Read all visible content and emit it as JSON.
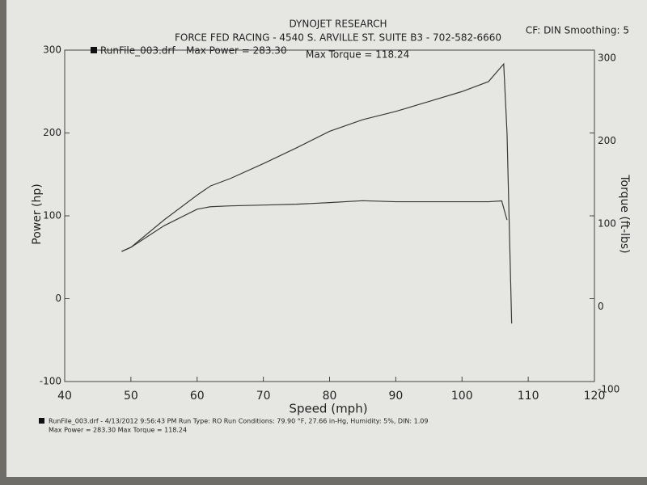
{
  "chart_data": {
    "type": "line",
    "title": "DYNOJET RESEARCH",
    "subtitle": "FORCE FED RACING - 4540 S. ARVILLE ST. SUITE B3 - 702-582-6660",
    "settings_label": "CF: DIN  Smoothing: 5",
    "x_label": "Speed (mph)",
    "y_label": "Power (hp)",
    "y2_label": "Torque (ft-lbs)",
    "annotations": [
      "Max Power = 283.30",
      "Max Torque = 118.24"
    ],
    "footer": [
      "RunFile_003.drf - 4/13/2012 9:56:43 PM  Run Type: RO  Run Conditions: 79.90 °F, 27.66 in-Hg,  Humidity:  5%, DIN: 1.09",
      "Max Power = 283.30  Max Torque = 118.24"
    ],
    "xlim": [
      40,
      120
    ],
    "xticks": [
      40,
      50,
      60,
      70,
      80,
      90,
      100,
      110,
      120
    ],
    "ylim": [
      -100,
      300
    ],
    "yticks": [
      -100,
      0,
      100,
      200,
      300
    ],
    "y2lim": [
      -100,
      300
    ],
    "y2ticks": [
      -100,
      0,
      100,
      200,
      300
    ],
    "series": [
      {
        "name": "RunFile_003.drf",
        "color": "#3a3a3a",
        "x": [
          48.6,
          50,
          55,
          60,
          62,
          65,
          70,
          75,
          80,
          85,
          90,
          95,
          100,
          104,
          106.3,
          106.8,
          107.5
        ],
        "values": [
          57,
          62,
          95,
          125,
          136,
          145,
          163,
          182,
          202,
          216,
          226,
          238,
          250,
          262,
          283.3,
          200,
          -30
        ]
      },
      {
        "axis": "y2",
        "color": "#3a3a3a",
        "x": [
          48.6,
          50,
          55,
          60,
          62,
          65,
          70,
          75,
          80,
          85,
          90,
          95,
          100,
          104,
          106,
          106.8
        ],
        "values": [
          57,
          62,
          88,
          108,
          111,
          112,
          113,
          114,
          116,
          118.24,
          117,
          117,
          117,
          117,
          118,
          95
        ]
      }
    ]
  }
}
